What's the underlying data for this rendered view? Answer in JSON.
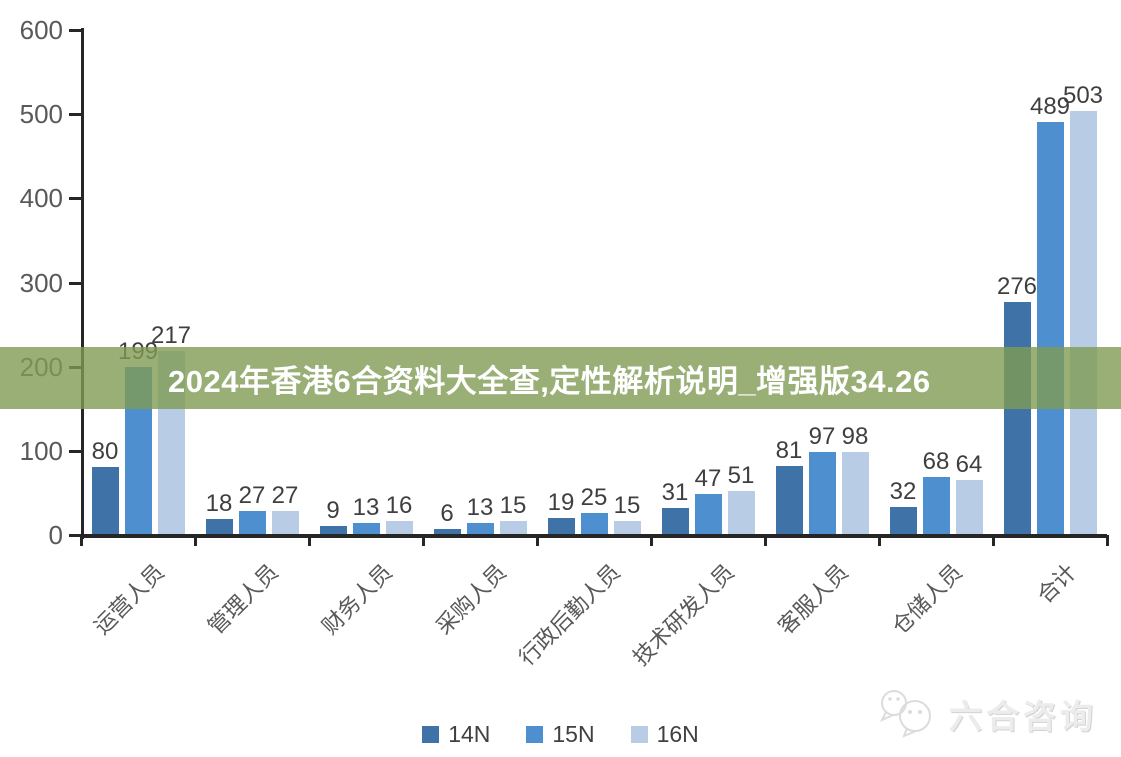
{
  "banner": {
    "text": "2024年香港6合资料大全查,定性解析说明_增强版34.26",
    "bg_color": "rgba(127,155,84,0.8)",
    "text_color": "#ffffff"
  },
  "watermark": {
    "text": "六合咨询",
    "icon": "chat-bubbles-icon"
  },
  "chart_data": {
    "type": "bar",
    "title": "",
    "categories": [
      "运营人员",
      "管理人员",
      "财务人员",
      "采购人员",
      "行政后勤人员",
      "技术研发人员",
      "客服人员",
      "仓储人员",
      "合计"
    ],
    "series": [
      {
        "name": "14N",
        "color": "#3f72a6",
        "values": [
          80,
          18,
          9,
          6,
          19,
          31,
          81,
          32,
          276
        ]
      },
      {
        "name": "15N",
        "color": "#4e8fd0",
        "values": [
          199,
          27,
          13,
          13,
          25,
          47,
          97,
          68,
          489
        ]
      },
      {
        "name": "16N",
        "color": "#b9cce6",
        "values": [
          217,
          27,
          16,
          15,
          15,
          51,
          98,
          64,
          503
        ]
      }
    ],
    "xlabel": "",
    "ylabel": "",
    "ylim": [
      0,
      600
    ],
    "yticks": [
      "0",
      "100",
      "200",
      "300",
      "400",
      "500",
      "600"
    ],
    "grid": false,
    "legend_position": "bottom",
    "axis_color": "#262626",
    "tick_label_color": "#595959",
    "value_label_color": "#3f3f3f"
  }
}
